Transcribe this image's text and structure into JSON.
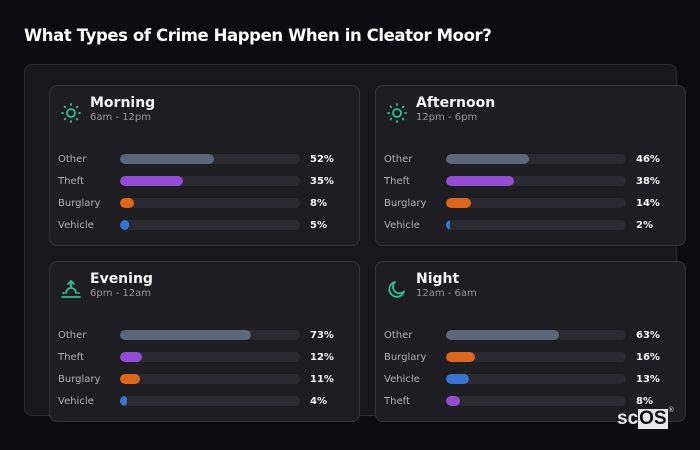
{
  "title": "What Types of Crime Happen When in Cleator Moor?",
  "colors": {
    "Other": "#5f6a7e",
    "Theft": "#9550d9",
    "Burglary": "#e06a1e",
    "Vehicle": "#3a78d8",
    "accent": "#2ec79a"
  },
  "cards": [
    {
      "title": "Morning",
      "subtitle": "6am - 12pm",
      "icon": "sun-icon",
      "rows": [
        {
          "label": "Other",
          "value": 52,
          "display": "52%"
        },
        {
          "label": "Theft",
          "value": 35,
          "display": "35%"
        },
        {
          "label": "Burglary",
          "value": 8,
          "display": "8%"
        },
        {
          "label": "Vehicle",
          "value": 5,
          "display": "5%"
        }
      ]
    },
    {
      "title": "Afternoon",
      "subtitle": "12pm - 6pm",
      "icon": "sun-icon",
      "rows": [
        {
          "label": "Other",
          "value": 46,
          "display": "46%"
        },
        {
          "label": "Theft",
          "value": 38,
          "display": "38%"
        },
        {
          "label": "Burglary",
          "value": 14,
          "display": "14%"
        },
        {
          "label": "Vehicle",
          "value": 2,
          "display": "2%"
        }
      ]
    },
    {
      "title": "Evening",
      "subtitle": "6pm - 12am",
      "icon": "sunset-icon",
      "rows": [
        {
          "label": "Other",
          "value": 73,
          "display": "73%"
        },
        {
          "label": "Theft",
          "value": 12,
          "display": "12%"
        },
        {
          "label": "Burglary",
          "value": 11,
          "display": "11%"
        },
        {
          "label": "Vehicle",
          "value": 4,
          "display": "4%"
        }
      ]
    },
    {
      "title": "Night",
      "subtitle": "12am - 6am",
      "icon": "moon-icon",
      "rows": [
        {
          "label": "Other",
          "value": 63,
          "display": "63%"
        },
        {
          "label": "Burglary",
          "value": 16,
          "display": "16%"
        },
        {
          "label": "Vehicle",
          "value": 13,
          "display": "13%"
        },
        {
          "label": "Theft",
          "value": 8,
          "display": "8%"
        }
      ]
    }
  ],
  "logo": {
    "sc": "sc",
    "os": "OS",
    "reg": "®"
  },
  "chart_data": [
    {
      "type": "bar",
      "title": "Morning",
      "subtitle": "6am - 12pm",
      "categories": [
        "Other",
        "Theft",
        "Burglary",
        "Vehicle"
      ],
      "values": [
        52,
        35,
        8,
        5
      ],
      "xlabel": "",
      "ylabel": "",
      "ylim": [
        0,
        100
      ],
      "orientation": "horizontal",
      "unit": "%"
    },
    {
      "type": "bar",
      "title": "Afternoon",
      "subtitle": "12pm - 6pm",
      "categories": [
        "Other",
        "Theft",
        "Burglary",
        "Vehicle"
      ],
      "values": [
        46,
        38,
        14,
        2
      ],
      "xlabel": "",
      "ylabel": "",
      "ylim": [
        0,
        100
      ],
      "orientation": "horizontal",
      "unit": "%"
    },
    {
      "type": "bar",
      "title": "Evening",
      "subtitle": "6pm - 12am",
      "categories": [
        "Other",
        "Theft",
        "Burglary",
        "Vehicle"
      ],
      "values": [
        73,
        12,
        11,
        4
      ],
      "xlabel": "",
      "ylabel": "",
      "ylim": [
        0,
        100
      ],
      "orientation": "horizontal",
      "unit": "%"
    },
    {
      "type": "bar",
      "title": "Night",
      "subtitle": "12am - 6am",
      "categories": [
        "Other",
        "Burglary",
        "Vehicle",
        "Theft"
      ],
      "values": [
        63,
        16,
        13,
        8
      ],
      "xlabel": "",
      "ylabel": "",
      "ylim": [
        0,
        100
      ],
      "orientation": "horizontal",
      "unit": "%"
    }
  ]
}
